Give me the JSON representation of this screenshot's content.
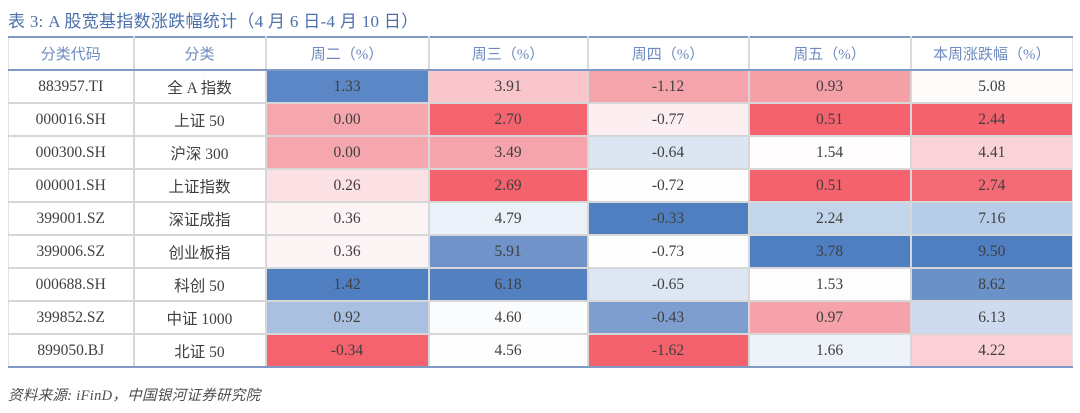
{
  "title": "表 3: A 股宽基指数涨跌幅统计（4 月 6 日-4 月 10 日）",
  "source_note": "资料来源: iFinD，中国银河证券研究院",
  "colors": {
    "title_blue": "#4c70ab",
    "header_blue": "#6d8bc0",
    "rule_blue": "#8199c5",
    "grid_gray": "#d7d7d7",
    "scale_max_blue": "#4f7fc1",
    "scale_min_red": "#f4626d"
  },
  "chart_data": {
    "type": "table",
    "title": "表 3: A 股宽基指数涨跌幅统计（4 月 6 日-4 月 10 日）",
    "note": "heatmap-formatted table: per-column blue = highest, red = lowest",
    "columns": [
      "分类代码",
      "分类",
      "周二（%）",
      "周三（%）",
      "周四（%）",
      "周五（%）",
      "本周涨跌幅（%）"
    ]
  },
  "table": {
    "columns": [
      "分类代码",
      "分类",
      "周二（%）",
      "周三（%）",
      "周四（%）",
      "周五（%）",
      "本周涨跌幅（%）"
    ],
    "rows": [
      {
        "code": "883957.TI",
        "name": "全 A 指数",
        "cells": [
          {
            "v": "1.33",
            "bg": "#5c87c6"
          },
          {
            "v": "3.91",
            "bg": "#f9c6cc"
          },
          {
            "v": "-1.12",
            "bg": "#f6a4ab"
          },
          {
            "v": "0.93",
            "bg": "#f59fa7"
          },
          {
            "v": "5.08",
            "bg": "#fefbfb"
          }
        ]
      },
      {
        "code": "000016.SH",
        "name": "上证 50",
        "cells": [
          {
            "v": "0.00",
            "bg": "#f6a6ad"
          },
          {
            "v": "2.70",
            "bg": "#f4646f"
          },
          {
            "v": "-0.77",
            "bg": "#fdeff1"
          },
          {
            "v": "0.51",
            "bg": "#f4626d"
          },
          {
            "v": "2.44",
            "bg": "#f4626d"
          }
        ]
      },
      {
        "code": "000300.SH",
        "name": "沪深 300",
        "cells": [
          {
            "v": "0.00",
            "bg": "#f6a6ad"
          },
          {
            "v": "3.49",
            "bg": "#f6a4ac"
          },
          {
            "v": "-0.64",
            "bg": "#dce6f3"
          },
          {
            "v": "1.54",
            "bg": "#fefcfc"
          },
          {
            "v": "4.41",
            "bg": "#fad3d8"
          }
        ]
      },
      {
        "code": "000001.SH",
        "name": "上证指数",
        "cells": [
          {
            "v": "0.26",
            "bg": "#fbe0e4"
          },
          {
            "v": "2.69",
            "bg": "#f4626d"
          },
          {
            "v": "-0.72",
            "bg": "#fefefe"
          },
          {
            "v": "0.51",
            "bg": "#f4626d"
          },
          {
            "v": "2.74",
            "bg": "#f56b75"
          }
        ]
      },
      {
        "code": "399001.SZ",
        "name": "深证成指",
        "cells": [
          {
            "v": "0.36",
            "bg": "#fdf4f5"
          },
          {
            "v": "4.79",
            "bg": "#ebf1f8"
          },
          {
            "v": "-0.33",
            "bg": "#4f7fc1"
          },
          {
            "v": "2.24",
            "bg": "#c3d5ea"
          },
          {
            "v": "7.16",
            "bg": "#b7cde7"
          }
        ]
      },
      {
        "code": "399006.SZ",
        "name": "创业板指",
        "cells": [
          {
            "v": "0.36",
            "bg": "#fdf4f5"
          },
          {
            "v": "5.91",
            "bg": "#7093c9"
          },
          {
            "v": "-0.73",
            "bg": "#fefefe"
          },
          {
            "v": "3.78",
            "bg": "#4f7fc1"
          },
          {
            "v": "9.50",
            "bg": "#4f7fc1"
          }
        ]
      },
      {
        "code": "000688.SH",
        "name": "科创 50",
        "cells": [
          {
            "v": "1.42",
            "bg": "#507fc1"
          },
          {
            "v": "6.18",
            "bg": "#5380c1"
          },
          {
            "v": "-0.65",
            "bg": "#dce7f3"
          },
          {
            "v": "1.53",
            "bg": "#fefdfd"
          },
          {
            "v": "8.62",
            "bg": "#6b92c8"
          }
        ]
      },
      {
        "code": "399852.SZ",
        "name": "中证 1000",
        "cells": [
          {
            "v": "0.92",
            "bg": "#a9c0e0"
          },
          {
            "v": "4.60",
            "bg": "#fbfcfd"
          },
          {
            "v": "-0.43",
            "bg": "#7d9ecf"
          },
          {
            "v": "0.97",
            "bg": "#f6a2aa"
          },
          {
            "v": "6.13",
            "bg": "#cedbee"
          }
        ]
      },
      {
        "code": "899050.BJ",
        "name": "北证 50",
        "cells": [
          {
            "v": "-0.34",
            "bg": "#f4636e"
          },
          {
            "v": "4.56",
            "bg": "#fefefe"
          },
          {
            "v": "-1.62",
            "bg": "#f4626d"
          },
          {
            "v": "1.66",
            "bg": "#eef3fa"
          },
          {
            "v": "4.22",
            "bg": "#facfd5"
          }
        ]
      }
    ]
  }
}
